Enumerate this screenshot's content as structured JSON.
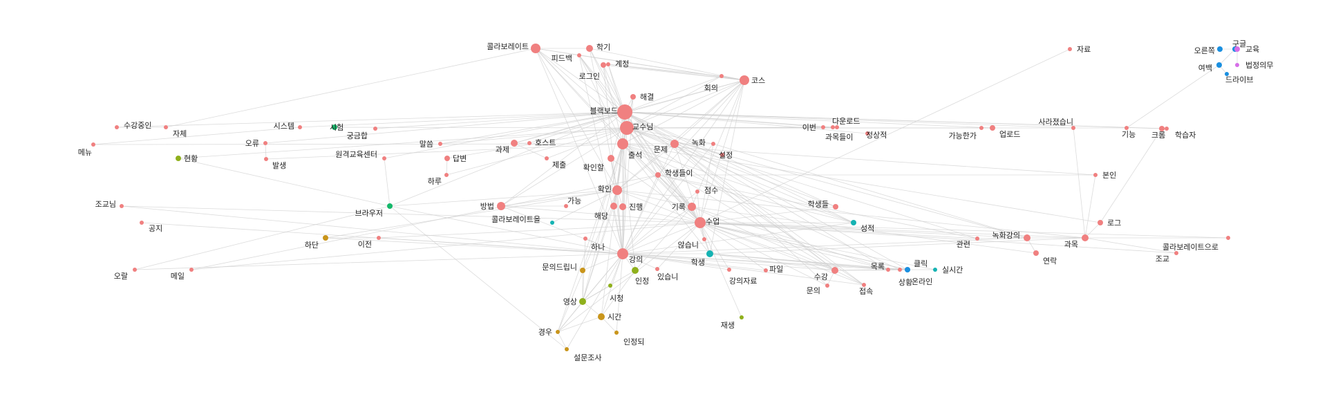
{
  "colors": {
    "coral": "#f08080",
    "olive": "#8fb01c",
    "gold": "#c9951b",
    "green": "#15b86a",
    "teal": "#15b3b3",
    "blue": "#1a8fe0",
    "violet": "#d66ee8",
    "edge": "#cfcfcf"
  },
  "nodes": [
    {
      "id": "n1",
      "label": "콜라보레이트"
    },
    {
      "id": "n2",
      "label": "피드백"
    },
    {
      "id": "n3",
      "label": "학기"
    },
    {
      "id": "n4",
      "label": "계정"
    },
    {
      "id": "n5",
      "label": "로그인"
    },
    {
      "id": "n6",
      "label": "회의"
    },
    {
      "id": "n7",
      "label": "코스"
    },
    {
      "id": "n8",
      "label": "해결"
    },
    {
      "id": "n9",
      "label": "블랙보드"
    },
    {
      "id": "n10",
      "label": "교수님"
    },
    {
      "id": "n11",
      "label": "출석"
    },
    {
      "id": "n12",
      "label": "문제"
    },
    {
      "id": "n13",
      "label": "녹화"
    },
    {
      "id": "n14",
      "label": "설정"
    },
    {
      "id": "n15",
      "label": "학생들이"
    },
    {
      "id": "n16",
      "label": "확인할"
    },
    {
      "id": "n17",
      "label": "확인"
    },
    {
      "id": "n18",
      "label": "진행"
    },
    {
      "id": "n19",
      "label": "해당"
    },
    {
      "id": "n20",
      "label": "기록"
    },
    {
      "id": "n21",
      "label": "점수"
    },
    {
      "id": "n22",
      "label": "수업"
    },
    {
      "id": "n23",
      "label": "않습니"
    },
    {
      "id": "n24",
      "label": "학생"
    },
    {
      "id": "n25",
      "label": "강의"
    },
    {
      "id": "n26",
      "label": "하나"
    },
    {
      "id": "n27",
      "label": "있습니"
    },
    {
      "id": "n28",
      "label": "인정"
    },
    {
      "id": "n29",
      "label": "시청"
    },
    {
      "id": "n30",
      "label": "영상"
    },
    {
      "id": "n31",
      "label": "시간"
    },
    {
      "id": "n32",
      "label": "인정되"
    },
    {
      "id": "n33",
      "label": "경우"
    },
    {
      "id": "n34",
      "label": "설문조사"
    },
    {
      "id": "n35",
      "label": "문의드립니"
    },
    {
      "id": "n36",
      "label": "재생"
    },
    {
      "id": "n37",
      "label": "강의자료"
    },
    {
      "id": "n38",
      "label": "파일"
    },
    {
      "id": "n39",
      "label": "수강"
    },
    {
      "id": "n40",
      "label": "문의"
    },
    {
      "id": "n41",
      "label": "접속"
    },
    {
      "id": "n42",
      "label": "목록"
    },
    {
      "id": "n43",
      "label": "상황"
    },
    {
      "id": "n44",
      "label": "클릭"
    },
    {
      "id": "n45",
      "label": "온라인"
    },
    {
      "id": "n46",
      "label": "실시간"
    },
    {
      "id": "n47",
      "label": "관련"
    },
    {
      "id": "n48",
      "label": "녹화강의"
    },
    {
      "id": "n49",
      "label": "연락"
    },
    {
      "id": "n50",
      "label": "과목"
    },
    {
      "id": "n51",
      "label": "조교"
    },
    {
      "id": "n52",
      "label": "콜라보레이트으로"
    },
    {
      "id": "n53",
      "label": "로그"
    },
    {
      "id": "n54",
      "label": "성적"
    },
    {
      "id": "n55",
      "label": "학생들"
    },
    {
      "id": "n56",
      "label": "본인"
    },
    {
      "id": "n57",
      "label": "자료"
    },
    {
      "id": "n58",
      "label": "오른쪽"
    },
    {
      "id": "n59",
      "label": "구글"
    },
    {
      "id": "n60",
      "label": "교육"
    },
    {
      "id": "n61",
      "label": "여백"
    },
    {
      "id": "n62",
      "label": "법정의무"
    },
    {
      "id": "n63",
      "label": "드라이브"
    },
    {
      "id": "n64",
      "label": "이번"
    },
    {
      "id": "n65",
      "label": "다운로드"
    },
    {
      "id": "n66",
      "label": "과목들이"
    },
    {
      "id": "n67",
      "label": "정상적"
    },
    {
      "id": "n68",
      "label": "가능한가"
    },
    {
      "id": "n69",
      "label": "업로드"
    },
    {
      "id": "n70",
      "label": "사라졌습니"
    },
    {
      "id": "n71",
      "label": "기능"
    },
    {
      "id": "n72",
      "label": "크롬"
    },
    {
      "id": "n73",
      "label": "학습자"
    },
    {
      "id": "n74",
      "label": "수강중인"
    },
    {
      "id": "n75",
      "label": "자체"
    },
    {
      "id": "n76",
      "label": "메뉴"
    },
    {
      "id": "n77",
      "label": "시스템"
    },
    {
      "id": "n78",
      "label": "시험"
    },
    {
      "id": "n79",
      "label": "궁금합"
    },
    {
      "id": "n80",
      "label": "오류"
    },
    {
      "id": "n81",
      "label": "발생"
    },
    {
      "id": "n82",
      "label": "말씀"
    },
    {
      "id": "n83",
      "label": "과제"
    },
    {
      "id": "n84",
      "label": "호스트"
    },
    {
      "id": "n85",
      "label": "현황"
    },
    {
      "id": "n86",
      "label": "원격교육센터"
    },
    {
      "id": "n87",
      "label": "답변"
    },
    {
      "id": "n88",
      "label": "하루"
    },
    {
      "id": "n89",
      "label": "제출"
    },
    {
      "id": "n90",
      "label": "조교님"
    },
    {
      "id": "n91",
      "label": "공지"
    },
    {
      "id": "n92",
      "label": "브라우저"
    },
    {
      "id": "n93",
      "label": "방법"
    },
    {
      "id": "n94",
      "label": "가능"
    },
    {
      "id": "n95",
      "label": "콜라보레이트을"
    },
    {
      "id": "n96",
      "label": "하단"
    },
    {
      "id": "n97",
      "label": "이전"
    },
    {
      "id": "n98",
      "label": "오랄"
    },
    {
      "id": "n99",
      "label": "메일"
    }
  ]
}
